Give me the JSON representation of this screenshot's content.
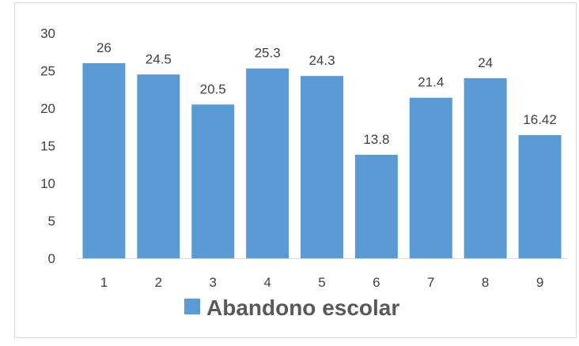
{
  "chart_data": {
    "type": "bar",
    "categories": [
      "1",
      "2",
      "3",
      "4",
      "5",
      "6",
      "7",
      "8",
      "9"
    ],
    "series": [
      {
        "name": "Abandono escolar",
        "values": [
          26,
          24.5,
          20.5,
          25.3,
          24.3,
          13.8,
          21.4,
          24,
          16.42
        ],
        "labels": [
          "26",
          "24.5",
          "20.5",
          "25.3",
          "24.3",
          "13.8",
          "21.4",
          "24",
          "16.42"
        ]
      }
    ],
    "yticks": [
      "0",
      "5",
      "10",
      "15",
      "20",
      "25",
      "30"
    ],
    "ylim": [
      0,
      30
    ],
    "legend_position": "bottom",
    "grid": false,
    "colors": {
      "bar": "#5B9BD5",
      "axis": "#d9d9d9",
      "text": "#404040",
      "legend_text": "#595959",
      "border": "#d9d9d9"
    }
  }
}
